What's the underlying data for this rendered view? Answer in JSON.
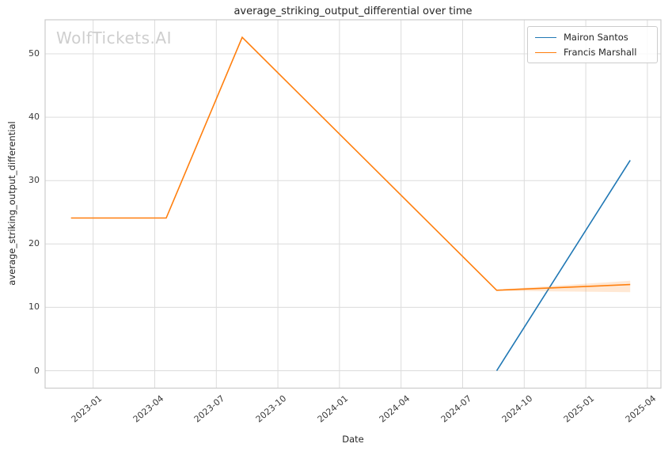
{
  "watermark": "WolfTickets.AI",
  "chart_data": {
    "type": "line",
    "title": "average_striking_output_differential over time",
    "xlabel": "Date",
    "ylabel": "average_striking_output_differential",
    "x_tick_labels": [
      "2023-01",
      "2023-04",
      "2023-07",
      "2023-10",
      "2024-01",
      "2024-04",
      "2024-07",
      "2024-10",
      "2025-01",
      "2025-04"
    ],
    "y_tick_labels": [
      "0",
      "10",
      "20",
      "30",
      "40",
      "50"
    ],
    "y_ticks": [
      0,
      10,
      20,
      30,
      40,
      50
    ],
    "ylim": [
      -2.7,
      55.5
    ],
    "xlim": [
      "2022-10-21",
      "2025-04-21"
    ],
    "grid": true,
    "grid_color": "#dcdcdc",
    "spine_color": "#cccccc",
    "legend": {
      "position": "upper right",
      "entries": [
        {
          "label": "Mairon Santos",
          "color": "#1f77b4"
        },
        {
          "label": "Francis Marshall",
          "color": "#ff7f0e"
        }
      ]
    },
    "series": [
      {
        "name": "Mairon Santos",
        "color": "#1f77b4",
        "x": [
          "2024-08-21",
          "2025-03-06"
        ],
        "y": [
          0.0,
          33.2
        ]
      },
      {
        "name": "Francis Marshall",
        "color": "#ff7f0e",
        "x": [
          "2022-11-29",
          "2023-04-18",
          "2023-08-09",
          "2024-08-21",
          "2025-03-06"
        ],
        "y": [
          24.1,
          24.1,
          52.6,
          12.7,
          13.6
        ],
        "band": {
          "x": [
            "2024-08-21",
            "2025-03-06"
          ],
          "lower": [
            12.6,
            12.4
          ],
          "upper": [
            12.8,
            14.2
          ],
          "fill": "#ff7f0e",
          "opacity": 0.18
        }
      }
    ]
  }
}
